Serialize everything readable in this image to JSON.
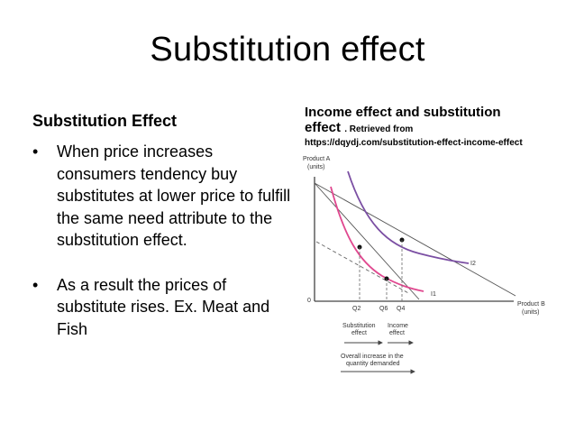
{
  "slide": {
    "title": "Substitution effect",
    "subheading": "Substitution Effect",
    "bullets": [
      "When price increases consumers tendency buy substitutes at lower price to fulfill the same need attribute to the substitution effect.",
      "As a result the prices of substitute rises. Ex. Meat and Fish"
    ],
    "bullet_symbol": "•"
  },
  "caption": {
    "line1": "Income effect and substitution",
    "line2_main": "effect",
    "line2_small": ". Retrieved from",
    "source": "https://dqydj.com/substitution-effect-income-effect"
  },
  "diagram": {
    "y_axis_label_1": "Product A",
    "y_axis_label_2": "(units)",
    "x_axis_label_1": "Product B",
    "x_axis_label_2": "(units)",
    "origin": "0",
    "curve_labels": [
      "I2",
      "I1"
    ],
    "tick_labels": [
      "Q2",
      "Q6",
      "Q4"
    ],
    "subst_label_1": "Substitution",
    "subst_label_2": "effect",
    "income_label_1": "Income",
    "income_label_2": "effect",
    "overall_label_1": "Overall increase in the",
    "overall_label_2": "quantity demanded",
    "colors": {
      "curve_i2": "#7b4fa3",
      "curve_i1": "#e0488f",
      "axis": "#444444"
    }
  }
}
